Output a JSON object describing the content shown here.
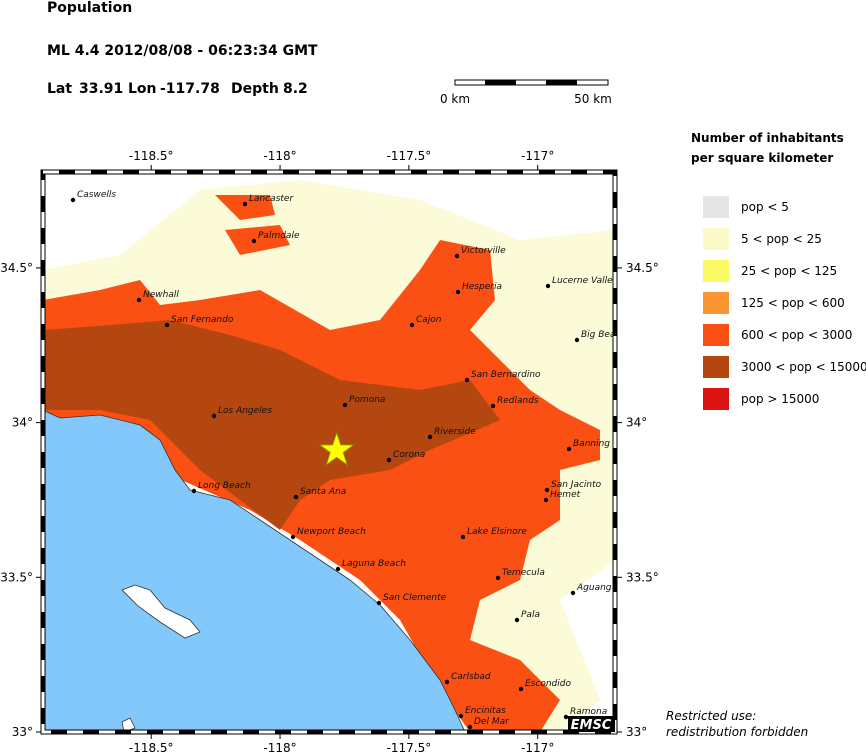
{
  "header": {
    "title": "Population",
    "event": "ML 4.4  2012/08/08 - 06:23:34 GMT",
    "lat": {
      "label": "Lat",
      "value": 33.91
    },
    "lon": {
      "label": "Lon",
      "value": -117.78
    },
    "depth": {
      "label": "Depth",
      "value": 8.2
    }
  },
  "scale": {
    "start": "0 km",
    "end": "50 km"
  },
  "map": {
    "xlim": [
      -118.92,
      -116.7
    ],
    "ylim": [
      33,
      34.81
    ],
    "xticks": [
      {
        "value": -118.5,
        "label": "-118.5°"
      },
      {
        "value": -118,
        "label": "-118°"
      },
      {
        "value": -117.5,
        "label": "-117.5°"
      },
      {
        "value": -117,
        "label": "-117°"
      }
    ],
    "yticks": [
      {
        "value": 34.5,
        "label": "34.5°"
      },
      {
        "value": 34,
        "label": "34°"
      },
      {
        "value": 33.5,
        "label": "33.5°"
      },
      {
        "value": 33,
        "label": "33°"
      }
    ],
    "cities": [
      "Caswells",
      "Lancaster",
      "Palmdale",
      "Victorville",
      "Lucerne Valle",
      "Hesperia",
      "Newhall",
      "San Fernando",
      "Cajon",
      "Big Bea",
      "San Bernardino",
      "Pomona",
      "Redlands",
      "Los Angeles",
      "Riverside",
      "Banning",
      "Corona",
      "San Jacinto",
      "Hemet",
      "Long Beach",
      "Santa Ana",
      "Newport Beach",
      "Lake Elsinore",
      "Laguna Beach",
      "Temecula",
      "Aguang",
      "San Clemente",
      "Pala",
      "Carlsbad",
      "Escondido",
      "Ramona",
      "Encinitas",
      "Del Mar"
    ],
    "badge": "EMSC"
  },
  "legend": {
    "title": [
      "Number of inhabitants",
      "per square kilometer"
    ],
    "items": [
      {
        "label": "pop < 5",
        "color": "#e6e6e6"
      },
      {
        "label": "5 < pop < 25",
        "color": "#fafac8"
      },
      {
        "label": "25 < pop < 125",
        "color": "#fafa64"
      },
      {
        "label": "125 < pop < 600",
        "color": "#fa9632"
      },
      {
        "label": "600 < pop < 3000",
        "color": "#fa5014"
      },
      {
        "label": "3000 < pop < 15000",
        "color": "#b4460f"
      },
      {
        "label": "pop > 15000",
        "color": "#dc1414"
      }
    ]
  },
  "notice": [
    "Restricted use:",
    "redistribution forbidden"
  ]
}
